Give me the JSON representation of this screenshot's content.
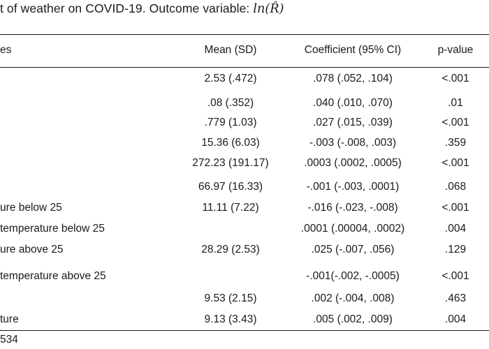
{
  "caption": {
    "text": "t of weather on COVID-19. Outcome variable: ",
    "math": "ln(R̂)"
  },
  "headers": {
    "variable": "es",
    "mean": "Mean (SD)",
    "coef": "Coefficient (95% CI)",
    "p": "p-value"
  },
  "rows": [
    {
      "variable": "",
      "mean": "2.53 (.472)",
      "coef": ".078 (.052, .104)",
      "p": "<.001"
    },
    {
      "variable": "",
      "mean": ".08 (.352)",
      "coef": ".040 (.010, .070)",
      "p": ".01"
    },
    {
      "variable": "",
      "mean": ".779 (1.03)",
      "coef": ".027 (.015, .039)",
      "p": "<.001"
    },
    {
      "variable": "",
      "mean": "15.36 (6.03)",
      "coef": "-.003 (-.008, .003)",
      "p": ".359"
    },
    {
      "variable": "",
      "mean": "272.23 (191.17)",
      "coef": ".0003 (.0002, .0005)",
      "p": "<.001"
    },
    {
      "variable": "",
      "mean": "66.97 (16.33)",
      "coef": "-.001 (-.003, .0001)",
      "p": ".068"
    },
    {
      "variable": "ure below 25",
      "mean": "11.11 (7.22)",
      "coef": "-.016 (-.023, -.008)",
      "p": "<.001"
    },
    {
      "variable": " temperature below 25",
      "mean": "",
      "coef": ".0001 (.00004, .0002)",
      "p": ".004"
    },
    {
      "variable": "ure above 25",
      "mean": "28.29 (2.53)",
      "coef": ".025 (-.007, .056)",
      "p": ".129"
    },
    {
      "variable": " temperature above 25",
      "mean": "",
      "coef": "-.001(-.002, -.0005)",
      "p": "<.001"
    },
    {
      "variable": "",
      "mean": "9.53 (2.15)",
      "coef": ".002 (-.004, .008)",
      "p": ".463"
    },
    {
      "variable": "ture",
      "mean": "9.13 (3.43)",
      "coef": ".005 (.002, .009)",
      "p": ".004"
    }
  ],
  "footer": "534"
}
